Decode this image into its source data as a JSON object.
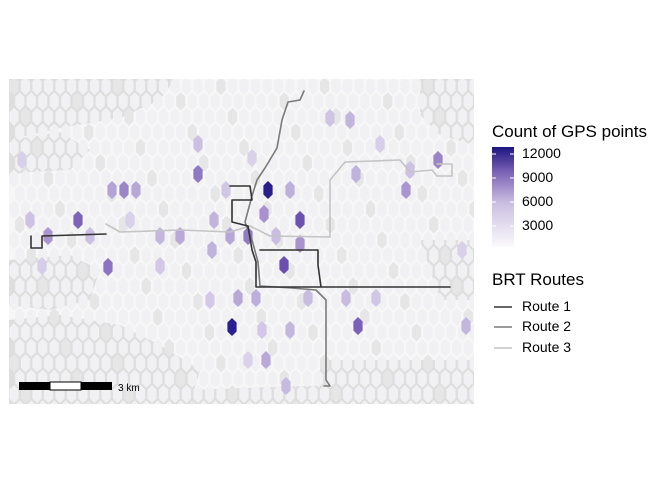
{
  "map": {
    "scale_bar": {
      "label": "3 km"
    },
    "background_color": "#dedede",
    "land_color": "#f7f7f7"
  },
  "legend_count": {
    "title": "Count of GPS points",
    "ticks": [
      "12000",
      "9000",
      "6000",
      "3000"
    ],
    "range": [
      0,
      12800
    ],
    "tick_values": [
      12000,
      9000,
      6000,
      3000
    ],
    "color_low": "#f6f4fa",
    "color_high": "#201a85"
  },
  "legend_routes": {
    "title": "BRT Routes",
    "items": [
      {
        "label": "Route 1",
        "color": "#333333"
      },
      {
        "label": "Route 2",
        "color": "#7a7a7a"
      },
      {
        "label": "Route 3",
        "color": "#c4c4c4"
      }
    ]
  }
}
